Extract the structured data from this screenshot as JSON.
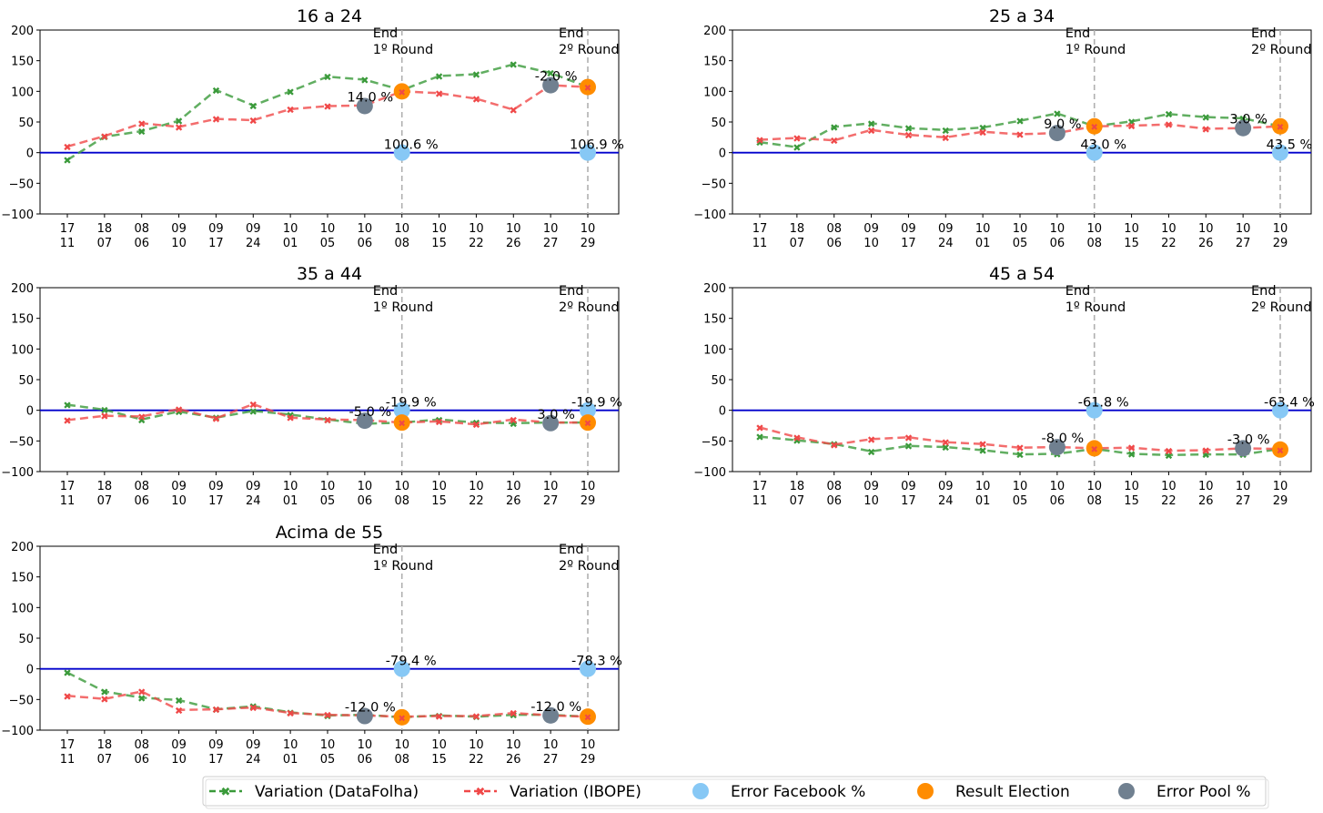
{
  "colors": {
    "datafolha": "#3a9a3a",
    "ibope": "#f04848",
    "facebook": "#87c8f5",
    "election": "#ff8c00",
    "pool": "#708090",
    "zero_line": "#0000cc",
    "vline": "#b0b0b0"
  },
  "legend": {
    "datafolha": "Variation (DataFolha)",
    "ibope": "Variation (IBOPE)",
    "facebook": "Error Facebook %",
    "election": "Result Election",
    "pool": "Error Pool %"
  },
  "vline_labels": [
    {
      "line1": "End",
      "line2": "1º Round"
    },
    {
      "line1": "End",
      "line2": "2º Round"
    }
  ],
  "chart_data": [
    {
      "type": "line",
      "title": "16 a 24",
      "ylim": [
        -100,
        200
      ],
      "yticks": [
        -100,
        -50,
        0,
        50,
        100,
        150,
        200
      ],
      "x_labels": [
        [
          "17",
          "11"
        ],
        [
          "18",
          "07"
        ],
        [
          "08",
          "06"
        ],
        [
          "09",
          "10"
        ],
        [
          "09",
          "17"
        ],
        [
          "09",
          "24"
        ],
        [
          "10",
          "01"
        ],
        [
          "10",
          "05"
        ],
        [
          "10",
          "06"
        ],
        [
          "10",
          "08"
        ],
        [
          "10",
          "15"
        ],
        [
          "10",
          "22"
        ],
        [
          "10",
          "26"
        ],
        [
          "10",
          "27"
        ],
        [
          "10",
          "29"
        ]
      ],
      "series": [
        {
          "name": "Variation (DataFolha)",
          "values": [
            -12,
            26,
            35,
            52,
            102,
            77,
            100,
            124,
            119,
            102,
            125,
            128,
            144,
            130,
            107
          ]
        },
        {
          "name": "Variation (IBOPE)",
          "values": [
            10,
            27,
            48,
            42,
            55,
            53,
            71,
            76,
            77,
            100,
            97,
            88,
            70,
            110,
            107
          ]
        }
      ],
      "vlines": [
        9,
        14
      ],
      "facebook": [
        {
          "x": 9,
          "y": 0,
          "label": "100.6 %"
        },
        {
          "x": 14,
          "y": 0,
          "label": "106.9 %"
        }
      ],
      "election": [
        {
          "x": 9,
          "y": 100
        },
        {
          "x": 14,
          "y": 107
        }
      ],
      "pool": [
        {
          "x": 8,
          "y": 76,
          "label": "14.0 %"
        },
        {
          "x": 13,
          "y": 110,
          "label": "-2.0 %"
        }
      ]
    },
    {
      "type": "line",
      "title": "25 a 34",
      "ylim": [
        -100,
        200
      ],
      "yticks": [
        -100,
        -50,
        0,
        50,
        100,
        150,
        200
      ],
      "x_labels": [
        [
          "17",
          "11"
        ],
        [
          "18",
          "07"
        ],
        [
          "08",
          "06"
        ],
        [
          "09",
          "10"
        ],
        [
          "09",
          "17"
        ],
        [
          "09",
          "24"
        ],
        [
          "10",
          "01"
        ],
        [
          "10",
          "05"
        ],
        [
          "10",
          "06"
        ],
        [
          "10",
          "08"
        ],
        [
          "10",
          "15"
        ],
        [
          "10",
          "22"
        ],
        [
          "10",
          "26"
        ],
        [
          "10",
          "27"
        ],
        [
          "10",
          "29"
        ]
      ],
      "series": [
        {
          "name": "Variation (DataFolha)",
          "values": [
            17,
            9,
            42,
            48,
            40,
            37,
            41,
            52,
            64,
            43,
            51,
            63,
            58,
            56,
            43
          ]
        },
        {
          "name": "Variation (IBOPE)",
          "values": [
            21,
            24,
            20,
            37,
            29,
            25,
            34,
            30,
            32,
            43,
            44,
            46,
            39,
            40,
            43
          ]
        }
      ],
      "vlines": [
        9,
        14
      ],
      "facebook": [
        {
          "x": 9,
          "y": 0,
          "label": "43.0 %"
        },
        {
          "x": 14,
          "y": 0,
          "label": "43.5 %"
        }
      ],
      "election": [
        {
          "x": 9,
          "y": 43
        },
        {
          "x": 14,
          "y": 43
        }
      ],
      "pool": [
        {
          "x": 8,
          "y": 32,
          "label": "9.0 %"
        },
        {
          "x": 13,
          "y": 40,
          "label": "3.0 %"
        }
      ]
    },
    {
      "type": "line",
      "title": "35 a 44",
      "ylim": [
        -100,
        200
      ],
      "yticks": [
        -100,
        -50,
        0,
        50,
        100,
        150,
        200
      ],
      "x_labels": [
        [
          "17",
          "11"
        ],
        [
          "18",
          "07"
        ],
        [
          "08",
          "06"
        ],
        [
          "09",
          "10"
        ],
        [
          "09",
          "17"
        ],
        [
          "09",
          "24"
        ],
        [
          "10",
          "01"
        ],
        [
          "10",
          "05"
        ],
        [
          "10",
          "06"
        ],
        [
          "10",
          "08"
        ],
        [
          "10",
          "15"
        ],
        [
          "10",
          "22"
        ],
        [
          "10",
          "26"
        ],
        [
          "10",
          "27"
        ],
        [
          "10",
          "29"
        ]
      ],
      "series": [
        {
          "name": "Variation (DataFolha)",
          "values": [
            9,
            1,
            -15,
            -2,
            -12,
            -1,
            -7,
            -15,
            -22,
            -20,
            -15,
            -20,
            -21,
            -20,
            -20
          ]
        },
        {
          "name": "Variation (IBOPE)",
          "values": [
            -16,
            -9,
            -10,
            2,
            -13,
            10,
            -12,
            -15,
            -16,
            -20,
            -18,
            -23,
            -15,
            -20,
            -20
          ]
        }
      ],
      "vlines": [
        9,
        14
      ],
      "facebook": [
        {
          "x": 9,
          "y": 0,
          "label": "-19.9 %"
        },
        {
          "x": 14,
          "y": 0,
          "label": "-19.9 %"
        }
      ],
      "election": [
        {
          "x": 9,
          "y": -20
        },
        {
          "x": 14,
          "y": -20
        }
      ],
      "pool": [
        {
          "x": 8,
          "y": -17,
          "label": "-5.0 %"
        },
        {
          "x": 13,
          "y": -21,
          "label": "3.0 %"
        }
      ]
    },
    {
      "type": "line",
      "title": "45 a 54",
      "ylim": [
        -100,
        200
      ],
      "yticks": [
        -100,
        -50,
        0,
        50,
        100,
        150,
        200
      ],
      "x_labels": [
        [
          "17",
          "11"
        ],
        [
          "18",
          "07"
        ],
        [
          "08",
          "06"
        ],
        [
          "09",
          "10"
        ],
        [
          "09",
          "17"
        ],
        [
          "09",
          "24"
        ],
        [
          "10",
          "01"
        ],
        [
          "10",
          "05"
        ],
        [
          "10",
          "06"
        ],
        [
          "10",
          "08"
        ],
        [
          "10",
          "15"
        ],
        [
          "10",
          "22"
        ],
        [
          "10",
          "26"
        ],
        [
          "10",
          "27"
        ],
        [
          "10",
          "29"
        ]
      ],
      "series": [
        {
          "name": "Variation (DataFolha)",
          "values": [
            -43,
            -49,
            -55,
            -67,
            -58,
            -60,
            -65,
            -72,
            -71,
            -63,
            -71,
            -73,
            -72,
            -72,
            -63
          ]
        },
        {
          "name": "Variation (IBOPE)",
          "values": [
            -28,
            -44,
            -56,
            -47,
            -44,
            -52,
            -55,
            -61,
            -60,
            -62,
            -61,
            -66,
            -65,
            -62,
            -63
          ]
        }
      ],
      "vlines": [
        9,
        14
      ],
      "facebook": [
        {
          "x": 9,
          "y": 0,
          "label": "-61.8 %"
        },
        {
          "x": 14,
          "y": 0,
          "label": "-63.4 %"
        }
      ],
      "election": [
        {
          "x": 9,
          "y": -62
        },
        {
          "x": 14,
          "y": -64
        }
      ],
      "pool": [
        {
          "x": 8,
          "y": -60,
          "label": "-8.0 %"
        },
        {
          "x": 13,
          "y": -62,
          "label": "-3.0 %"
        }
      ]
    },
    {
      "type": "line",
      "title": "Acima de 55",
      "ylim": [
        -100,
        200
      ],
      "yticks": [
        -100,
        -50,
        0,
        50,
        100,
        150,
        200
      ],
      "x_labels": [
        [
          "17",
          "11"
        ],
        [
          "18",
          "07"
        ],
        [
          "08",
          "06"
        ],
        [
          "09",
          "10"
        ],
        [
          "09",
          "17"
        ],
        [
          "09",
          "24"
        ],
        [
          "10",
          "01"
        ],
        [
          "10",
          "05"
        ],
        [
          "10",
          "06"
        ],
        [
          "10",
          "08"
        ],
        [
          "10",
          "15"
        ],
        [
          "10",
          "22"
        ],
        [
          "10",
          "26"
        ],
        [
          "10",
          "27"
        ],
        [
          "10",
          "29"
        ]
      ],
      "series": [
        {
          "name": "Variation (DataFolha)",
          "values": [
            -6,
            -37,
            -47,
            -51,
            -66,
            -61,
            -71,
            -76,
            -75,
            -79,
            -76,
            -78,
            -75,
            -75,
            -78
          ]
        },
        {
          "name": "Variation (IBOPE)",
          "values": [
            -44,
            -49,
            -37,
            -67,
            -66,
            -63,
            -72,
            -75,
            -76,
            -78,
            -77,
            -77,
            -72,
            -76,
            -78
          ]
        }
      ],
      "vlines": [
        9,
        14
      ],
      "facebook": [
        {
          "x": 9,
          "y": 0,
          "label": "-79.4 %"
        },
        {
          "x": 14,
          "y": 0,
          "label": "-78.3 %"
        }
      ],
      "election": [
        {
          "x": 9,
          "y": -79
        },
        {
          "x": 14,
          "y": -78
        }
      ],
      "pool": [
        {
          "x": 8,
          "y": -77,
          "label": "-12.0 %"
        },
        {
          "x": 13,
          "y": -76,
          "label": "-12.0 %"
        }
      ]
    }
  ]
}
